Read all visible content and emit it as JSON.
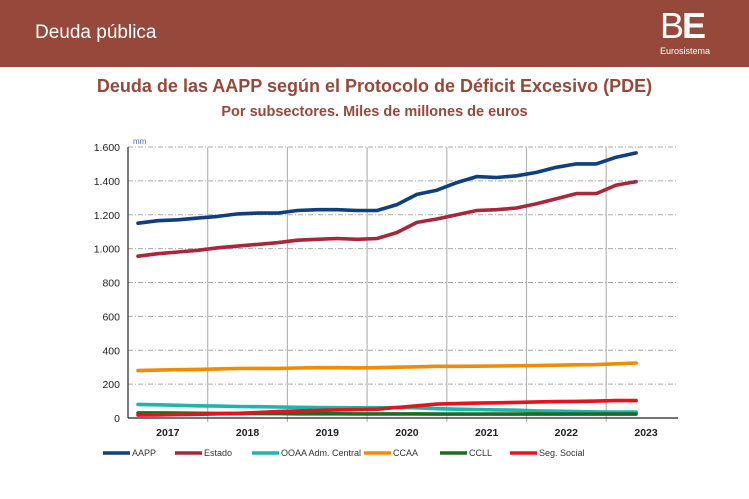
{
  "header": {
    "title": "Deuda pública",
    "logo_letters_1": "B",
    "logo_letters_2": "E",
    "logo_subtitle": "Eurosistema"
  },
  "chart_data": {
    "type": "line",
    "title": "Deuda de las AAPP según el Protocolo de Déficit Excesivo (PDE)",
    "subtitle": "Por subsectores. Miles de millones de euros",
    "unit_label": "mm",
    "xlabel": "",
    "ylabel": "",
    "ylim": [
      0,
      1600
    ],
    "yticks": [
      0,
      200,
      400,
      600,
      800,
      1000,
      1200,
      1400,
      1600
    ],
    "ytick_labels": [
      "0",
      "200",
      "400",
      "600",
      "800",
      "1.000",
      "1.200",
      "1.400",
      "1.600"
    ],
    "xtick_labels": [
      "2017",
      "2018",
      "2019",
      "2020",
      "2021",
      "2022",
      "2023"
    ],
    "x": [
      "2017Q1",
      "2017Q2",
      "2017Q3",
      "2017Q4",
      "2018Q1",
      "2018Q2",
      "2018Q3",
      "2018Q4",
      "2019Q1",
      "2019Q2",
      "2019Q3",
      "2019Q4",
      "2020Q1",
      "2020Q2",
      "2020Q3",
      "2020Q4",
      "2021Q1",
      "2021Q2",
      "2021Q3",
      "2021Q4",
      "2022Q1",
      "2022Q2",
      "2022Q3",
      "2022Q4",
      "2023Q1",
      "2023Q2"
    ],
    "grid": true,
    "legend_position": "bottom",
    "series": [
      {
        "name": "AAPP",
        "color": "#0f3f7f",
        "values": [
          1150,
          1165,
          1170,
          1180,
          1190,
          1205,
          1210,
          1210,
          1225,
          1230,
          1230,
          1225,
          1225,
          1260,
          1320,
          1345,
          1390,
          1425,
          1420,
          1430,
          1450,
          1480,
          1500,
          1500,
          1540,
          1565
        ]
      },
      {
        "name": "Estado",
        "color": "#a8273a",
        "values": [
          955,
          970,
          980,
          990,
          1005,
          1015,
          1025,
          1035,
          1050,
          1055,
          1060,
          1055,
          1060,
          1095,
          1155,
          1175,
          1200,
          1225,
          1230,
          1240,
          1265,
          1295,
          1325,
          1325,
          1375,
          1395
        ]
      },
      {
        "name": "OOAA Adm. Central",
        "color": "#1db5ad",
        "values": [
          80,
          78,
          75,
          72,
          70,
          68,
          67,
          65,
          63,
          62,
          61,
          60,
          60,
          62,
          60,
          55,
          52,
          50,
          48,
          46,
          42,
          40,
          38,
          36,
          35,
          35
        ]
      },
      {
        "name": "CCAA",
        "color": "#f08c00",
        "values": [
          280,
          283,
          285,
          287,
          290,
          292,
          293,
          293,
          295,
          297,
          297,
          296,
          297,
          300,
          302,
          305,
          305,
          306,
          307,
          308,
          310,
          312,
          314,
          315,
          320,
          325
        ]
      },
      {
        "name": "CCLL",
        "color": "#1e6b25",
        "values": [
          30,
          30,
          29,
          28,
          27,
          27,
          26,
          26,
          25,
          25,
          25,
          24,
          24,
          24,
          24,
          23,
          23,
          23,
          23,
          23,
          23,
          23,
          23,
          23,
          23,
          23
        ]
      },
      {
        "name": "Seg. Social",
        "color": "#e8111f",
        "values": [
          17,
          18,
          20,
          22,
          25,
          28,
          32,
          38,
          42,
          45,
          48,
          50,
          52,
          62,
          72,
          82,
          85,
          88,
          90,
          92,
          95,
          97,
          98,
          100,
          103,
          103
        ]
      }
    ]
  }
}
